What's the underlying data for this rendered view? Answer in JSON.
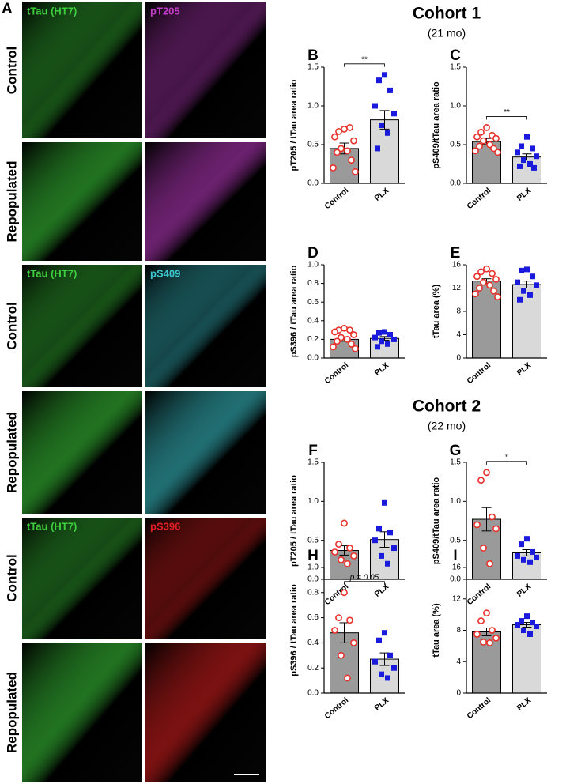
{
  "image_panel": {
    "label": "A",
    "groups": [
      {
        "channels": [
          "tTau (HT7)",
          "pT205"
        ],
        "colors": [
          "#3ccf3c",
          "#c23cc8"
        ],
        "rows": [
          "Control",
          "Repopulated"
        ]
      },
      {
        "channels": [
          "tTau (HT7)",
          "pS409"
        ],
        "colors": [
          "#3ccf3c",
          "#3cc8d0"
        ],
        "rows": [
          "Control",
          "Repopulated"
        ]
      },
      {
        "channels": [
          "tTau (HT7)",
          "pS396"
        ],
        "colors": [
          "#3ccf3c",
          "#e02020"
        ],
        "rows": [
          "Control",
          "Repopulated"
        ]
      }
    ]
  },
  "cohorts": [
    {
      "title": "Cohort 1",
      "subtitle": "(21 mo)"
    },
    {
      "title": "Cohort 2",
      "subtitle": "(22 mo)"
    }
  ],
  "chart_data": [
    {
      "type": "bar",
      "label": "B",
      "ylabel": "pT205 / tTau area ratio",
      "categories": [
        "Control",
        "PLX"
      ],
      "values": [
        0.45,
        0.82
      ],
      "errors": [
        0.07,
        0.12
      ],
      "points": [
        [
          0.7,
          0.67,
          0.72,
          0.6,
          0.55,
          0.45,
          0.42,
          0.4,
          0.3,
          0.2,
          0.15
        ],
        [
          1.4,
          1.33,
          1.2,
          1.0,
          0.9,
          0.75,
          0.65,
          0.45
        ]
      ],
      "colors": [
        "#9a9a9a",
        "#d9d9d9"
      ],
      "point_colors": [
        "#e8312a",
        "#1a1adc"
      ],
      "ylim": [
        0,
        1.5
      ],
      "yticks": [
        {
          "value": 0,
          "label": "0.0"
        },
        0.5,
        {
          "value": 1,
          "label": "1.0"
        },
        1.5
      ],
      "significance": "**"
    },
    {
      "type": "bar",
      "label": "C",
      "ylabel": "pS409/tTau area ratio",
      "categories": [
        "Control",
        "PLX"
      ],
      "values": [
        0.54,
        0.34
      ],
      "errors": [
        0.04,
        0.04
      ],
      "points": [
        [
          0.72,
          0.66,
          0.62,
          0.6,
          0.58,
          0.55,
          0.5,
          0.48,
          0.45,
          0.42,
          0.4
        ],
        [
          0.6,
          0.48,
          0.45,
          0.4,
          0.35,
          0.3,
          0.25,
          0.22,
          0.2
        ]
      ],
      "colors": [
        "#9a9a9a",
        "#d9d9d9"
      ],
      "point_colors": [
        "#e8312a",
        "#1a1adc"
      ],
      "ylim": [
        0,
        1.5
      ],
      "yticks": [
        {
          "value": 0,
          "label": "0.0"
        },
        0.5,
        {
          "value": 1,
          "label": "1.0"
        },
        1.5
      ],
      "significance": "**"
    },
    {
      "type": "bar",
      "label": "D",
      "ylabel": "pS396 / tTau area ratio",
      "categories": [
        "Control",
        "PLX"
      ],
      "values": [
        0.2,
        0.21
      ],
      "errors": [
        0.02,
        0.02
      ],
      "points": [
        [
          0.32,
          0.3,
          0.3,
          0.28,
          0.25,
          0.22,
          0.2,
          0.18,
          0.15,
          0.12,
          0.1
        ],
        [
          0.28,
          0.27,
          0.25,
          0.22,
          0.2,
          0.18,
          0.15,
          0.12
        ]
      ],
      "colors": [
        "#9a9a9a",
        "#d9d9d9"
      ],
      "point_colors": [
        "#e8312a",
        "#1a1adc"
      ],
      "ylim": [
        0,
        1
      ],
      "yticks": [
        {
          "value": 0,
          "label": "0.0"
        },
        0.2,
        0.4,
        0.6,
        0.8,
        {
          "value": 1,
          "label": "1.0"
        }
      ]
    },
    {
      "type": "bar",
      "label": "E",
      "ylabel": "tTau area (%)",
      "categories": [
        "Control",
        "PLX"
      ],
      "values": [
        13.2,
        12.6
      ],
      "errors": [
        0.4,
        0.6
      ],
      "points": [
        [
          15.3,
          14.8,
          14.5,
          14.0,
          13.5,
          13.0,
          12.5,
          12.0,
          11.5,
          11.0,
          10.5
        ],
        [
          15.2,
          15.0,
          14.0,
          13.0,
          12.5,
          11.5,
          10.8,
          10.0
        ]
      ],
      "colors": [
        "#9a9a9a",
        "#d9d9d9"
      ],
      "point_colors": [
        "#e8312a",
        "#1a1adc"
      ],
      "ylim": [
        0,
        16
      ],
      "yticks": [
        0,
        4,
        8,
        12,
        16
      ]
    },
    {
      "type": "bar",
      "label": "F",
      "ylabel": "pT205 / tTau area ratio",
      "categories": [
        "Control",
        "PLX"
      ],
      "values": [
        0.37,
        0.51
      ],
      "errors": [
        0.06,
        0.1
      ],
      "points": [
        [
          0.72,
          0.45,
          0.4,
          0.35,
          0.3,
          0.25,
          0.2
        ],
        [
          0.98,
          0.65,
          0.6,
          0.5,
          0.4,
          0.3,
          0.2
        ]
      ],
      "colors": [
        "#9a9a9a",
        "#d9d9d9"
      ],
      "point_colors": [
        "#e8312a",
        "#1a1adc"
      ],
      "ylim": [
        0,
        1.5
      ],
      "yticks": [
        {
          "value": 0,
          "label": "0.0"
        },
        0.5,
        {
          "value": 1,
          "label": "1.0"
        },
        1.5
      ]
    },
    {
      "type": "bar",
      "label": "G",
      "ylabel": "pS409/tTau area ratio",
      "categories": [
        "Control",
        "PLX"
      ],
      "values": [
        0.77,
        0.34
      ],
      "errors": [
        0.15,
        0.04
      ],
      "points": [
        [
          1.37,
          1.27,
          0.8,
          0.7,
          0.65,
          0.4,
          0.2
        ],
        [
          0.52,
          0.45,
          0.35,
          0.3,
          0.28,
          0.25,
          0.22
        ]
      ],
      "colors": [
        "#9a9a9a",
        "#d9d9d9"
      ],
      "point_colors": [
        "#e8312a",
        "#1a1adc"
      ],
      "ylim": [
        0,
        1.5
      ],
      "yticks": [
        {
          "value": 0,
          "label": "0.0"
        },
        0.5,
        {
          "value": 1,
          "label": "1.0"
        },
        1.5
      ],
      "significance": "*"
    },
    {
      "type": "bar",
      "label": "H",
      "ylabel": "pS396 / tTau area ratio",
      "categories": [
        "Control",
        "PLX"
      ],
      "values": [
        0.48,
        0.27
      ],
      "errors": [
        0.08,
        0.05
      ],
      "points": [
        [
          0.8,
          0.6,
          0.58,
          0.5,
          0.4,
          0.3,
          0.12
        ],
        [
          0.48,
          0.42,
          0.3,
          0.25,
          0.2,
          0.15,
          0.12
        ]
      ],
      "colors": [
        "#9a9a9a",
        "#d9d9d9"
      ],
      "point_colors": [
        "#e8312a",
        "#1a1adc"
      ],
      "ylim": [
        0,
        1
      ],
      "yticks": [
        {
          "value": 0,
          "label": "0.0"
        },
        0.2,
        0.4,
        0.6,
        0.8,
        {
          "value": 1,
          "label": "1.0"
        }
      ],
      "significance": "p = 0.05"
    },
    {
      "type": "bar",
      "label": "I",
      "ylabel": "tTau area (%)",
      "categories": [
        "Control",
        "PLX"
      ],
      "values": [
        7.8,
        8.7
      ],
      "errors": [
        0.5,
        0.3
      ],
      "points": [
        [
          10.2,
          9.2,
          8.0,
          7.5,
          7.0,
          6.5,
          6.4
        ],
        [
          9.8,
          9.2,
          9.0,
          8.7,
          8.5,
          8.0,
          7.5
        ]
      ],
      "colors": [
        "#9a9a9a",
        "#d9d9d9"
      ],
      "point_colors": [
        "#e8312a",
        "#1a1adc"
      ],
      "ylim": [
        0,
        16
      ],
      "yticks": [
        0,
        4,
        8,
        12,
        16
      ]
    }
  ]
}
